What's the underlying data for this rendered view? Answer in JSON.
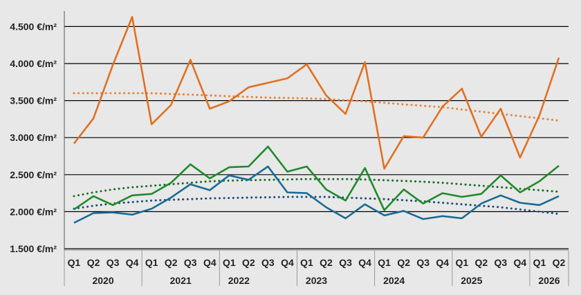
{
  "colors": {
    "background": "#e8e8e8",
    "gridline": "#000000",
    "series_orange": "#e07020",
    "series_green": "#1f8a2a",
    "series_blue": "#1a6a95",
    "trend_orange": "#e8803a",
    "trend_green": "#1b6e24",
    "trend_blue": "#1a4f7a"
  },
  "chart_data": {
    "type": "line",
    "title": "",
    "xlabel": "",
    "ylabel": "",
    "ylim": [
      1500,
      4750
    ],
    "grid": true,
    "legend": "none",
    "y_ticks": [
      1500,
      2000,
      2500,
      3000,
      3500,
      4000,
      4500
    ],
    "y_tick_labels": [
      "1.500 €/m²",
      "2.000 €/m²",
      "2.500 €/m²",
      "3.000 €/m²",
      "3.500 €/m²",
      "4.000 €/m²",
      "4.500 €/m²"
    ],
    "categories": [
      "Q1",
      "Q2",
      "Q3",
      "Q4",
      "Q1",
      "Q2",
      "Q3",
      "Q4",
      "Q1",
      "Q2",
      "Q3",
      "Q4",
      "Q1",
      "Q2",
      "Q3",
      "Q4",
      "Q1",
      "Q2",
      "Q3",
      "Q4",
      "Q1",
      "Q2",
      "Q3",
      "Q4",
      "Q1",
      "Q2"
    ],
    "year_groups": [
      {
        "label": "2020",
        "count": 4
      },
      {
        "label": "2021",
        "count": 4
      },
      {
        "label": "2022",
        "count": 4
      },
      {
        "label": "2023",
        "count": 4
      },
      {
        "label": "2024",
        "count": 4
      },
      {
        "label": "2025",
        "count": 4
      },
      {
        "label": "2026",
        "count": 2
      }
    ],
    "year_label_positions": [
      1.5,
      5.5,
      8.5,
      12.5,
      16.5,
      20.5,
      24.5
    ],
    "series": [
      {
        "key": "orange",
        "values": [
          2920,
          3260,
          3980,
          4630,
          3180,
          3440,
          4050,
          3390,
          3490,
          3680,
          3740,
          3800,
          3990,
          3570,
          3320,
          4020,
          2580,
          3020,
          3000,
          3420,
          3660,
          3010,
          3390,
          2730,
          3300,
          4080
        ],
        "trend": [
          3600,
          3600,
          3600,
          3600,
          3600,
          3590,
          3580,
          3570,
          3560,
          3550,
          3540,
          3535,
          3530,
          3520,
          3505,
          3490,
          3470,
          3450,
          3430,
          3410,
          3380,
          3350,
          3320,
          3290,
          3260,
          3230
        ]
      },
      {
        "key": "green",
        "values": [
          2030,
          2210,
          2090,
          2220,
          2240,
          2390,
          2640,
          2450,
          2600,
          2610,
          2880,
          2540,
          2610,
          2300,
          2150,
          2590,
          2020,
          2300,
          2110,
          2250,
          2200,
          2240,
          2490,
          2260,
          2410,
          2620
        ],
        "trend": [
          2210,
          2260,
          2300,
          2330,
          2350,
          2370,
          2390,
          2410,
          2420,
          2425,
          2430,
          2435,
          2440,
          2440,
          2440,
          2435,
          2425,
          2415,
          2405,
          2390,
          2370,
          2350,
          2330,
          2310,
          2290,
          2270
        ]
      },
      {
        "key": "blue",
        "values": [
          1850,
          1980,
          1990,
          1960,
          2040,
          2190,
          2370,
          2290,
          2490,
          2430,
          2610,
          2260,
          2250,
          2060,
          1910,
          2100,
          1950,
          2010,
          1900,
          1940,
          1910,
          2110,
          2220,
          2120,
          2090,
          2210
        ],
        "trend": [
          2040,
          2080,
          2110,
          2130,
          2150,
          2160,
          2170,
          2180,
          2185,
          2190,
          2195,
          2200,
          2200,
          2200,
          2190,
          2180,
          2170,
          2155,
          2140,
          2120,
          2100,
          2080,
          2060,
          2030,
          2000,
          1970
        ]
      }
    ]
  }
}
